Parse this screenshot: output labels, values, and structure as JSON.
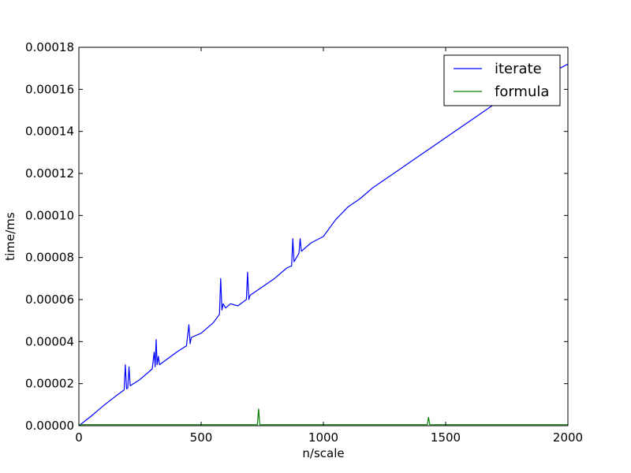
{
  "chart_data": {
    "type": "line",
    "title": "",
    "xlabel": "n/scale",
    "ylabel": "time/ms",
    "xlim": [
      0,
      2000
    ],
    "ylim": [
      0,
      0.00018
    ],
    "x_ticks": [
      0,
      500,
      1000,
      1500,
      2000
    ],
    "x_tick_labels": [
      "0",
      "500",
      "1000",
      "1500",
      "2000"
    ],
    "y_ticks": [
      0,
      2e-05,
      4e-05,
      6e-05,
      8e-05,
      0.0001,
      0.00012,
      0.00014,
      0.00016,
      0.00018
    ],
    "y_tick_labels": [
      "0.00000",
      "0.00002",
      "0.00004",
      "0.00006",
      "0.00008",
      "0.00010",
      "0.00012",
      "0.00014",
      "0.00016",
      "0.00018"
    ],
    "grid": false,
    "legend_position": "top-right",
    "series": [
      {
        "name": "iterate",
        "color": "#0000ff",
        "x": [
          0,
          50,
          100,
          150,
          185,
          190,
          195,
          200,
          205,
          210,
          250,
          300,
          308,
          312,
          316,
          320,
          325,
          330,
          400,
          440,
          450,
          455,
          460,
          500,
          550,
          575,
          580,
          585,
          590,
          600,
          620,
          650,
          685,
          690,
          695,
          700,
          750,
          800,
          850,
          870,
          875,
          880,
          900,
          905,
          910,
          950,
          1000,
          1050,
          1100,
          1150,
          1200,
          1250,
          1300,
          1350,
          1400,
          1450,
          1500,
          1550,
          1600,
          1650,
          1700,
          1750,
          1800,
          1850,
          1900,
          1950,
          2000
        ],
        "y": [
          0,
          4.5e-06,
          9.5e-06,
          1.4e-05,
          1.7e-05,
          2.9e-05,
          1.75e-05,
          1.8e-05,
          2.8e-05,
          1.9e-05,
          2.2e-05,
          2.7e-05,
          3.5e-05,
          2.8e-05,
          4.1e-05,
          2.9e-05,
          3.3e-05,
          2.9e-05,
          3.5e-05,
          3.8e-05,
          4.8e-05,
          3.9e-05,
          4.2e-05,
          4.4e-05,
          4.9e-05,
          5.3e-05,
          7e-05,
          5.5e-05,
          5.8e-05,
          5.6e-05,
          5.8e-05,
          5.7e-05,
          6e-05,
          7.3e-05,
          6e-05,
          6.2e-05,
          6.6e-05,
          7e-05,
          7.5e-05,
          7.6e-05,
          8.9e-05,
          7.8e-05,
          8.2e-05,
          8.9e-05,
          8.3e-05,
          8.7e-05,
          9e-05,
          9.8e-05,
          0.000104,
          0.000108,
          0.000113,
          0.000117,
          0.000121,
          0.000125,
          0.000129,
          0.000133,
          0.000137,
          0.000141,
          0.000145,
          0.000149,
          0.000153,
          0.000156,
          0.00016,
          0.000163,
          0.000166,
          0.000169,
          0.000172
        ]
      },
      {
        "name": "formula",
        "color": "#008000",
        "x": [
          0,
          100,
          200,
          300,
          400,
          500,
          600,
          700,
          730,
          735,
          740,
          800,
          900,
          1000,
          1100,
          1200,
          1300,
          1400,
          1425,
          1430,
          1435,
          1500,
          1600,
          1700,
          1800,
          1900,
          2000
        ],
        "y": [
          5e-07,
          5e-07,
          5e-07,
          5e-07,
          5e-07,
          5e-07,
          5e-07,
          5e-07,
          5e-07,
          8e-06,
          5e-07,
          5e-07,
          5e-07,
          5e-07,
          5e-07,
          5e-07,
          5e-07,
          5e-07,
          5e-07,
          4e-06,
          5e-07,
          5e-07,
          5e-07,
          5e-07,
          5e-07,
          5e-07,
          5e-07
        ]
      }
    ]
  }
}
